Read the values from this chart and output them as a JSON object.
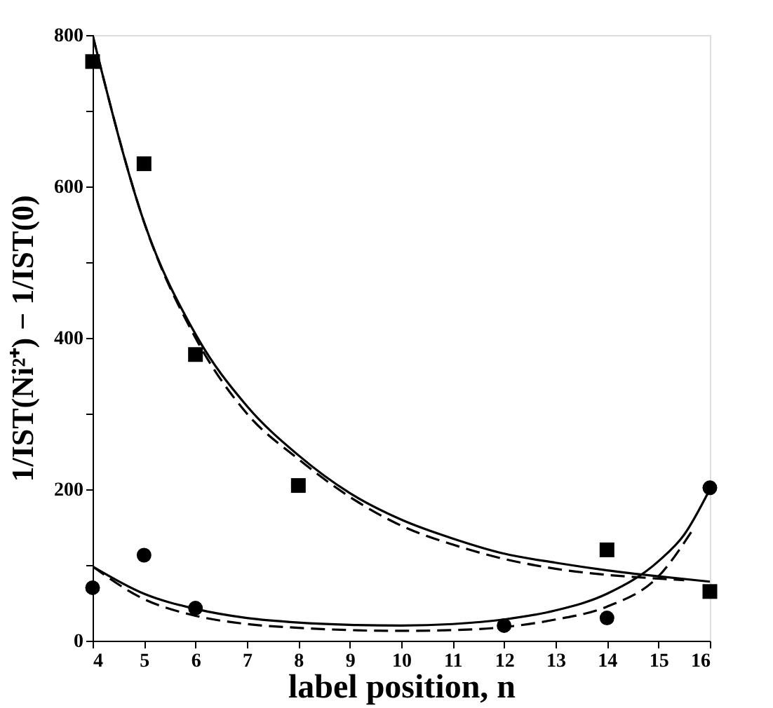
{
  "chart_data": {
    "type": "scatter",
    "xlabel": "label position, n",
    "ylabel": "1/IST(Ni²⁺) − 1/IST(0)",
    "xlim": [
      4,
      16
    ],
    "xticks": [
      4,
      5,
      6,
      7,
      8,
      9,
      10,
      11,
      12,
      13,
      14,
      15,
      16
    ],
    "ylim": [
      0,
      800
    ],
    "yticks": [
      0,
      {
        "value": 100,
        "label": null
      },
      200,
      {
        "value": 300,
        "label": null
      },
      400,
      {
        "value": 500,
        "label": null
      },
      600,
      {
        "value": 700,
        "label": null
      },
      800
    ],
    "grid": false,
    "series": [
      {
        "marker": "square",
        "color": "#000000",
        "x": [
          4,
          5,
          6,
          8,
          14,
          16
        ],
        "values": [
          765,
          630,
          378,
          205,
          120,
          65
        ]
      },
      {
        "marker": "circle",
        "color": "#000000",
        "x": [
          4,
          5,
          6,
          12,
          14,
          16
        ],
        "values": [
          70,
          113,
          43,
          20,
          30,
          202
        ]
      },
      {
        "type": "line",
        "marker": "none",
        "line_style": "solid",
        "color": "#000000",
        "x": [
          4,
          5,
          6,
          7,
          8,
          9,
          10,
          11,
          12,
          13,
          14,
          15,
          16
        ],
        "values": [
          800,
          553,
          405,
          310,
          245,
          195,
          160,
          135,
          115,
          103,
          93,
          85,
          78
        ]
      },
      {
        "type": "line",
        "marker": "none",
        "line_style": "dashed",
        "color": "#000000",
        "x": [
          4,
          5,
          6,
          7,
          8,
          9,
          10,
          11,
          12,
          13,
          14,
          15,
          15.5
        ],
        "values": [
          800,
          553,
          400,
          300,
          240,
          190,
          152,
          127,
          108,
          95,
          87,
          82,
          80
        ]
      },
      {
        "type": "line",
        "marker": "none",
        "line_style": "solid",
        "color": "#000000",
        "x": [
          4,
          5,
          6,
          7,
          8,
          9,
          10,
          11,
          12,
          13,
          14,
          15,
          15.5,
          16
        ],
        "values": [
          98,
          62,
          42,
          30,
          24,
          21,
          20,
          22,
          28,
          40,
          62,
          105,
          140,
          200
        ]
      },
      {
        "type": "line",
        "marker": "none",
        "line_style": "dashed",
        "color": "#000000",
        "x": [
          4,
          5,
          6,
          7,
          8,
          9,
          10,
          11,
          12,
          13,
          14,
          15,
          15.7
        ],
        "values": [
          98,
          55,
          33,
          22,
          17,
          14,
          13,
          14,
          18,
          28,
          45,
          85,
          150
        ]
      }
    ]
  }
}
